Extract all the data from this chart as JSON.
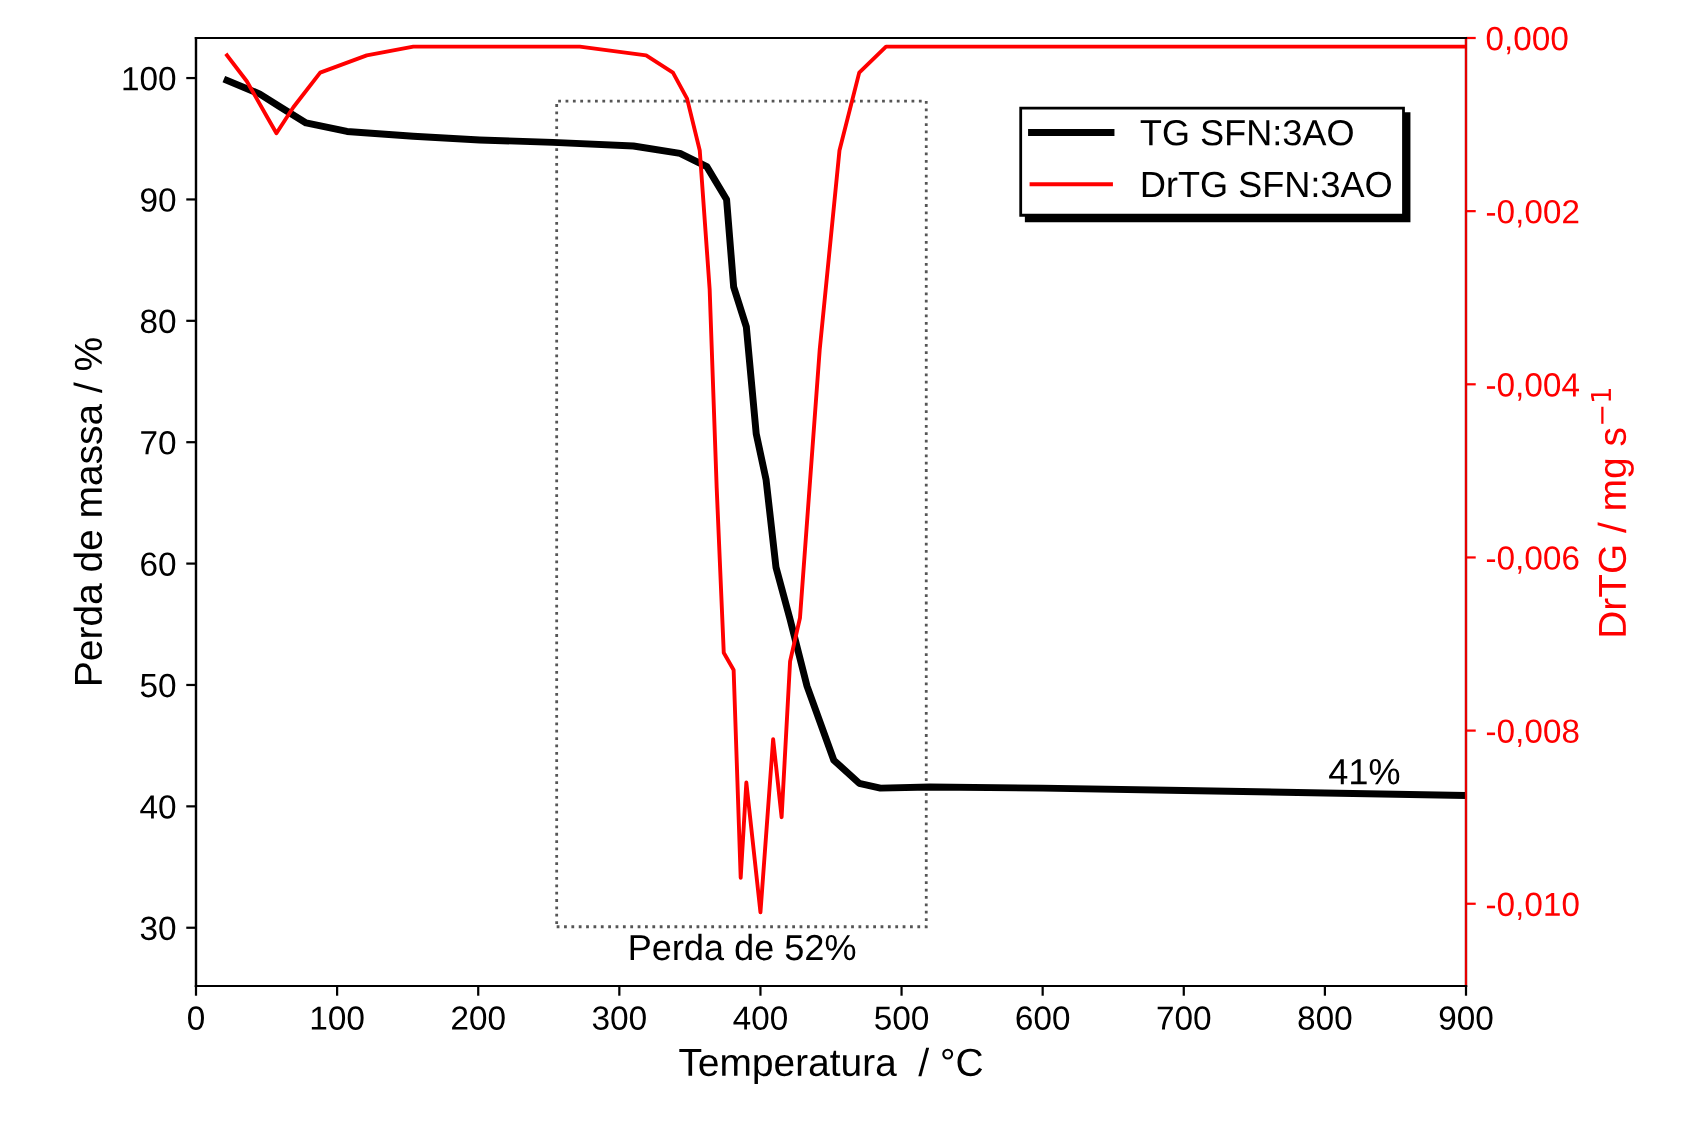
{
  "chart_data": {
    "type": "line",
    "xlabel": "Temperatura  / °C",
    "ylabel": "Perda de massa / %",
    "y2label": "DrTG / mg s$^{−1}$",
    "xlim": [
      0,
      900
    ],
    "xticks": [
      0,
      100,
      200,
      300,
      400,
      500,
      600,
      700,
      800,
      900
    ],
    "ylim": [
      25.2,
      103.3
    ],
    "yticks": [
      30,
      40,
      50,
      60,
      70,
      80,
      90,
      100
    ],
    "y2lim": [
      -0.01095,
      0
    ],
    "y2ticks": [
      {
        "value": 0,
        "label": "0,000"
      },
      {
        "value": -0.002,
        "label": "-0,002"
      },
      {
        "value": -0.004,
        "label": "-0,004"
      },
      {
        "value": -0.006,
        "label": "-0,006"
      },
      {
        "value": -0.008,
        "label": "-0,008"
      },
      {
        "value": -0.01,
        "label": "-0,010"
      }
    ],
    "legend": "top right",
    "grid": false,
    "series": [
      {
        "name": "TG SFN:3AO",
        "color": "#000000",
        "axis": "y",
        "x": [
          22,
          45,
          60,
          78,
          107,
          154,
          201,
          253,
          310,
          343,
          362,
          376,
          381,
          390,
          397,
          404,
          411,
          421,
          433,
          452,
          470,
          485,
          520,
          600,
          700,
          800,
          900
        ],
        "values": [
          99.8,
          98.7,
          97.6,
          96.3,
          95.6,
          95.2,
          94.9,
          94.7,
          94.4,
          93.8,
          92.7,
          90.0,
          82.8,
          79.5,
          70.7,
          66.9,
          59.7,
          55.4,
          49.9,
          43.8,
          41.9,
          41.5,
          41.6,
          41.5,
          41.3,
          41.1,
          40.9
        ]
      },
      {
        "name": "DrTG SFN:3AO",
        "color": "#ff0000",
        "axis": "y2",
        "x": [
          22,
          36,
          50,
          57,
          69,
          88,
          121,
          154,
          201,
          272,
          319,
          338,
          348,
          357,
          364,
          369,
          374,
          381,
          386,
          390,
          400,
          409,
          415,
          421,
          428,
          442,
          456,
          470,
          489,
          518,
          600,
          900
        ],
        "values": [
          -0.0002,
          -0.0005,
          -0.0009,
          -0.0011,
          -0.0008,
          -0.0004,
          -0.0002,
          -0.0001,
          -0.0001,
          -0.0001,
          -0.0002,
          -0.0004,
          -0.0007,
          -0.0013,
          -0.0029,
          -0.0052,
          -0.0071,
          -0.0073,
          -0.0097,
          -0.0086,
          -0.0101,
          -0.0081,
          -0.009,
          -0.0072,
          -0.0067,
          -0.0036,
          -0.0013,
          -0.0004,
          -0.0001,
          -0.0001,
          -0.0001,
          -0.0001
        ]
      }
    ],
    "annotations": [
      "Perda de 52%",
      "41%"
    ]
  }
}
